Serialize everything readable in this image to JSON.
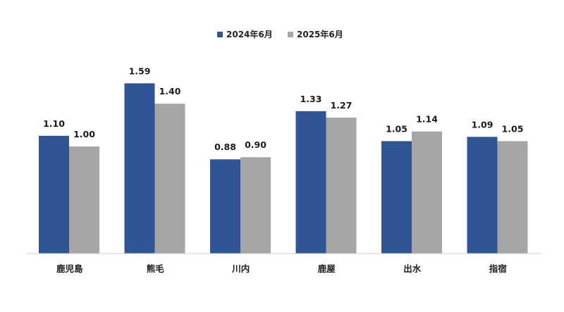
{
  "chart_data": {
    "type": "bar",
    "categories": [
      "鹿児島",
      "熊毛",
      "川内",
      "鹿屋",
      "出水",
      "指宿"
    ],
    "series": [
      {
        "name": "2024年6月",
        "color": "#2F5597",
        "values": [
          1.1,
          1.59,
          0.88,
          1.33,
          1.05,
          1.09
        ],
        "labels": [
          "1.10",
          "1.59",
          "0.88",
          "1.33",
          "1.05",
          "1.09"
        ]
      },
      {
        "name": "2025年6月",
        "color": "#A6A6A6",
        "values": [
          1.0,
          1.4,
          0.9,
          1.27,
          1.14,
          1.05
        ],
        "labels": [
          "1.00",
          "1.40",
          "0.90",
          "1.27",
          "1.14",
          "1.05"
        ]
      }
    ],
    "title": "",
    "xlabel": "",
    "ylabel": "",
    "ylim": [
      0,
      1.6
    ],
    "grid": false,
    "legend_position": "top-center"
  }
}
